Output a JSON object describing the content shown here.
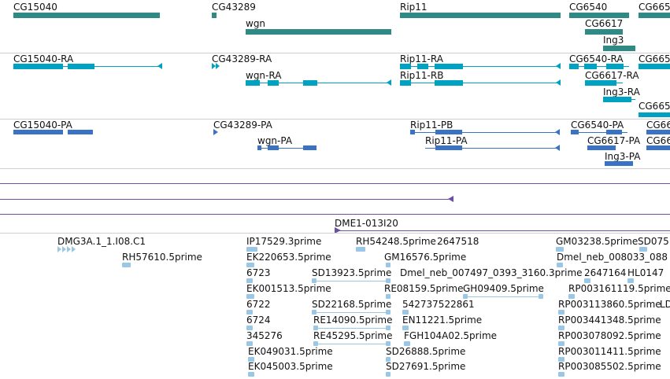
{
  "colors": {
    "gene": "#2f8a85",
    "transcript": "#00a2c2",
    "cds": "#3a73c6",
    "clone": "#6b50a0",
    "est": "#9ac7e6",
    "separator": "#cfcfcf"
  },
  "genes": {
    "cg15040": "CG15040",
    "cg43289": "CG43289",
    "wgn": "wgn",
    "rip11": "Rip11",
    "cg6540": "CG6540",
    "cg6617": "CG6617",
    "ing3": "Ing3",
    "cg665_partial": "CG665"
  },
  "transcripts": {
    "cg15040_ra": "CG15040-RA",
    "cg43289_ra": "CG43289-RA",
    "wgn_ra": "wgn-RA",
    "rip11_ra": "Rip11-RA",
    "rip11_rb": "Rip11-RB",
    "cg6540_ra": "CG6540-RA",
    "cg6617_ra": "CG6617-RA",
    "ing3_ra": "Ing3-RA",
    "cg665_ra_partial": "CG665",
    "cg665_ra_partial2": "CG665"
  },
  "proteins": {
    "cg15040_pa": "CG15040-PA",
    "cg43289_pa": "CG43289-PA",
    "wgn_pa": "wgn-PA",
    "rip11_pb": "Rip11-PB",
    "rip11_pa": "Rip11-PA",
    "cg6540_pa": "CG6540-PA",
    "cg6617_pa": "CG6617-PA",
    "ing3_pa": "Ing3-PA",
    "cg66_partial": "CG66",
    "cg66_partial2": "CG66"
  },
  "clone": {
    "label": "DME1-013I20"
  },
  "ests": {
    "e1": "DMG3A.1_1.I08.C1",
    "e2": "RH57610.5prime",
    "e3": "IP17529.3prime",
    "e4": "RH54248.5prime",
    "e5": "2647518",
    "e6": "GM03238.5prime",
    "e7": "SD075",
    "e8": "EK220653.5prime",
    "e9": "GM16576.5prime",
    "e10": "Dmel_neb_008033_088",
    "e11": "6723",
    "e12": "SD13923.5prime",
    "e13": "Dmel_neb_007497_0393_3160.3prime",
    "e14": "2647164",
    "e15": "HL0147",
    "e16": "EK001513.5prime",
    "e17": "RE08159.5prime",
    "e18": "GH09409.5prime",
    "e19": "RP003161119.5prime",
    "e20": "6722",
    "e21": "SD22168.5prime",
    "e22": "542737522861",
    "e23": "RP003113860.5prime",
    "e24": "LD",
    "e25": "6724",
    "e26": "RE14090.5prime",
    "e27": "EN11221.5prime",
    "e28": "RP003441348.5prime",
    "e29": "345276",
    "e30": "RE45295.5prime",
    "e31": "FGH104A02.5prime",
    "e32": "RP003078092.5prime",
    "e33": "EK049031.5prime",
    "e34": "SD26888.5prime",
    "e35": "RP003011411.5prime",
    "e36": "EK045003.5prime",
    "e37": "SD27691.5prime",
    "e38": "RP003085502.5prime"
  }
}
